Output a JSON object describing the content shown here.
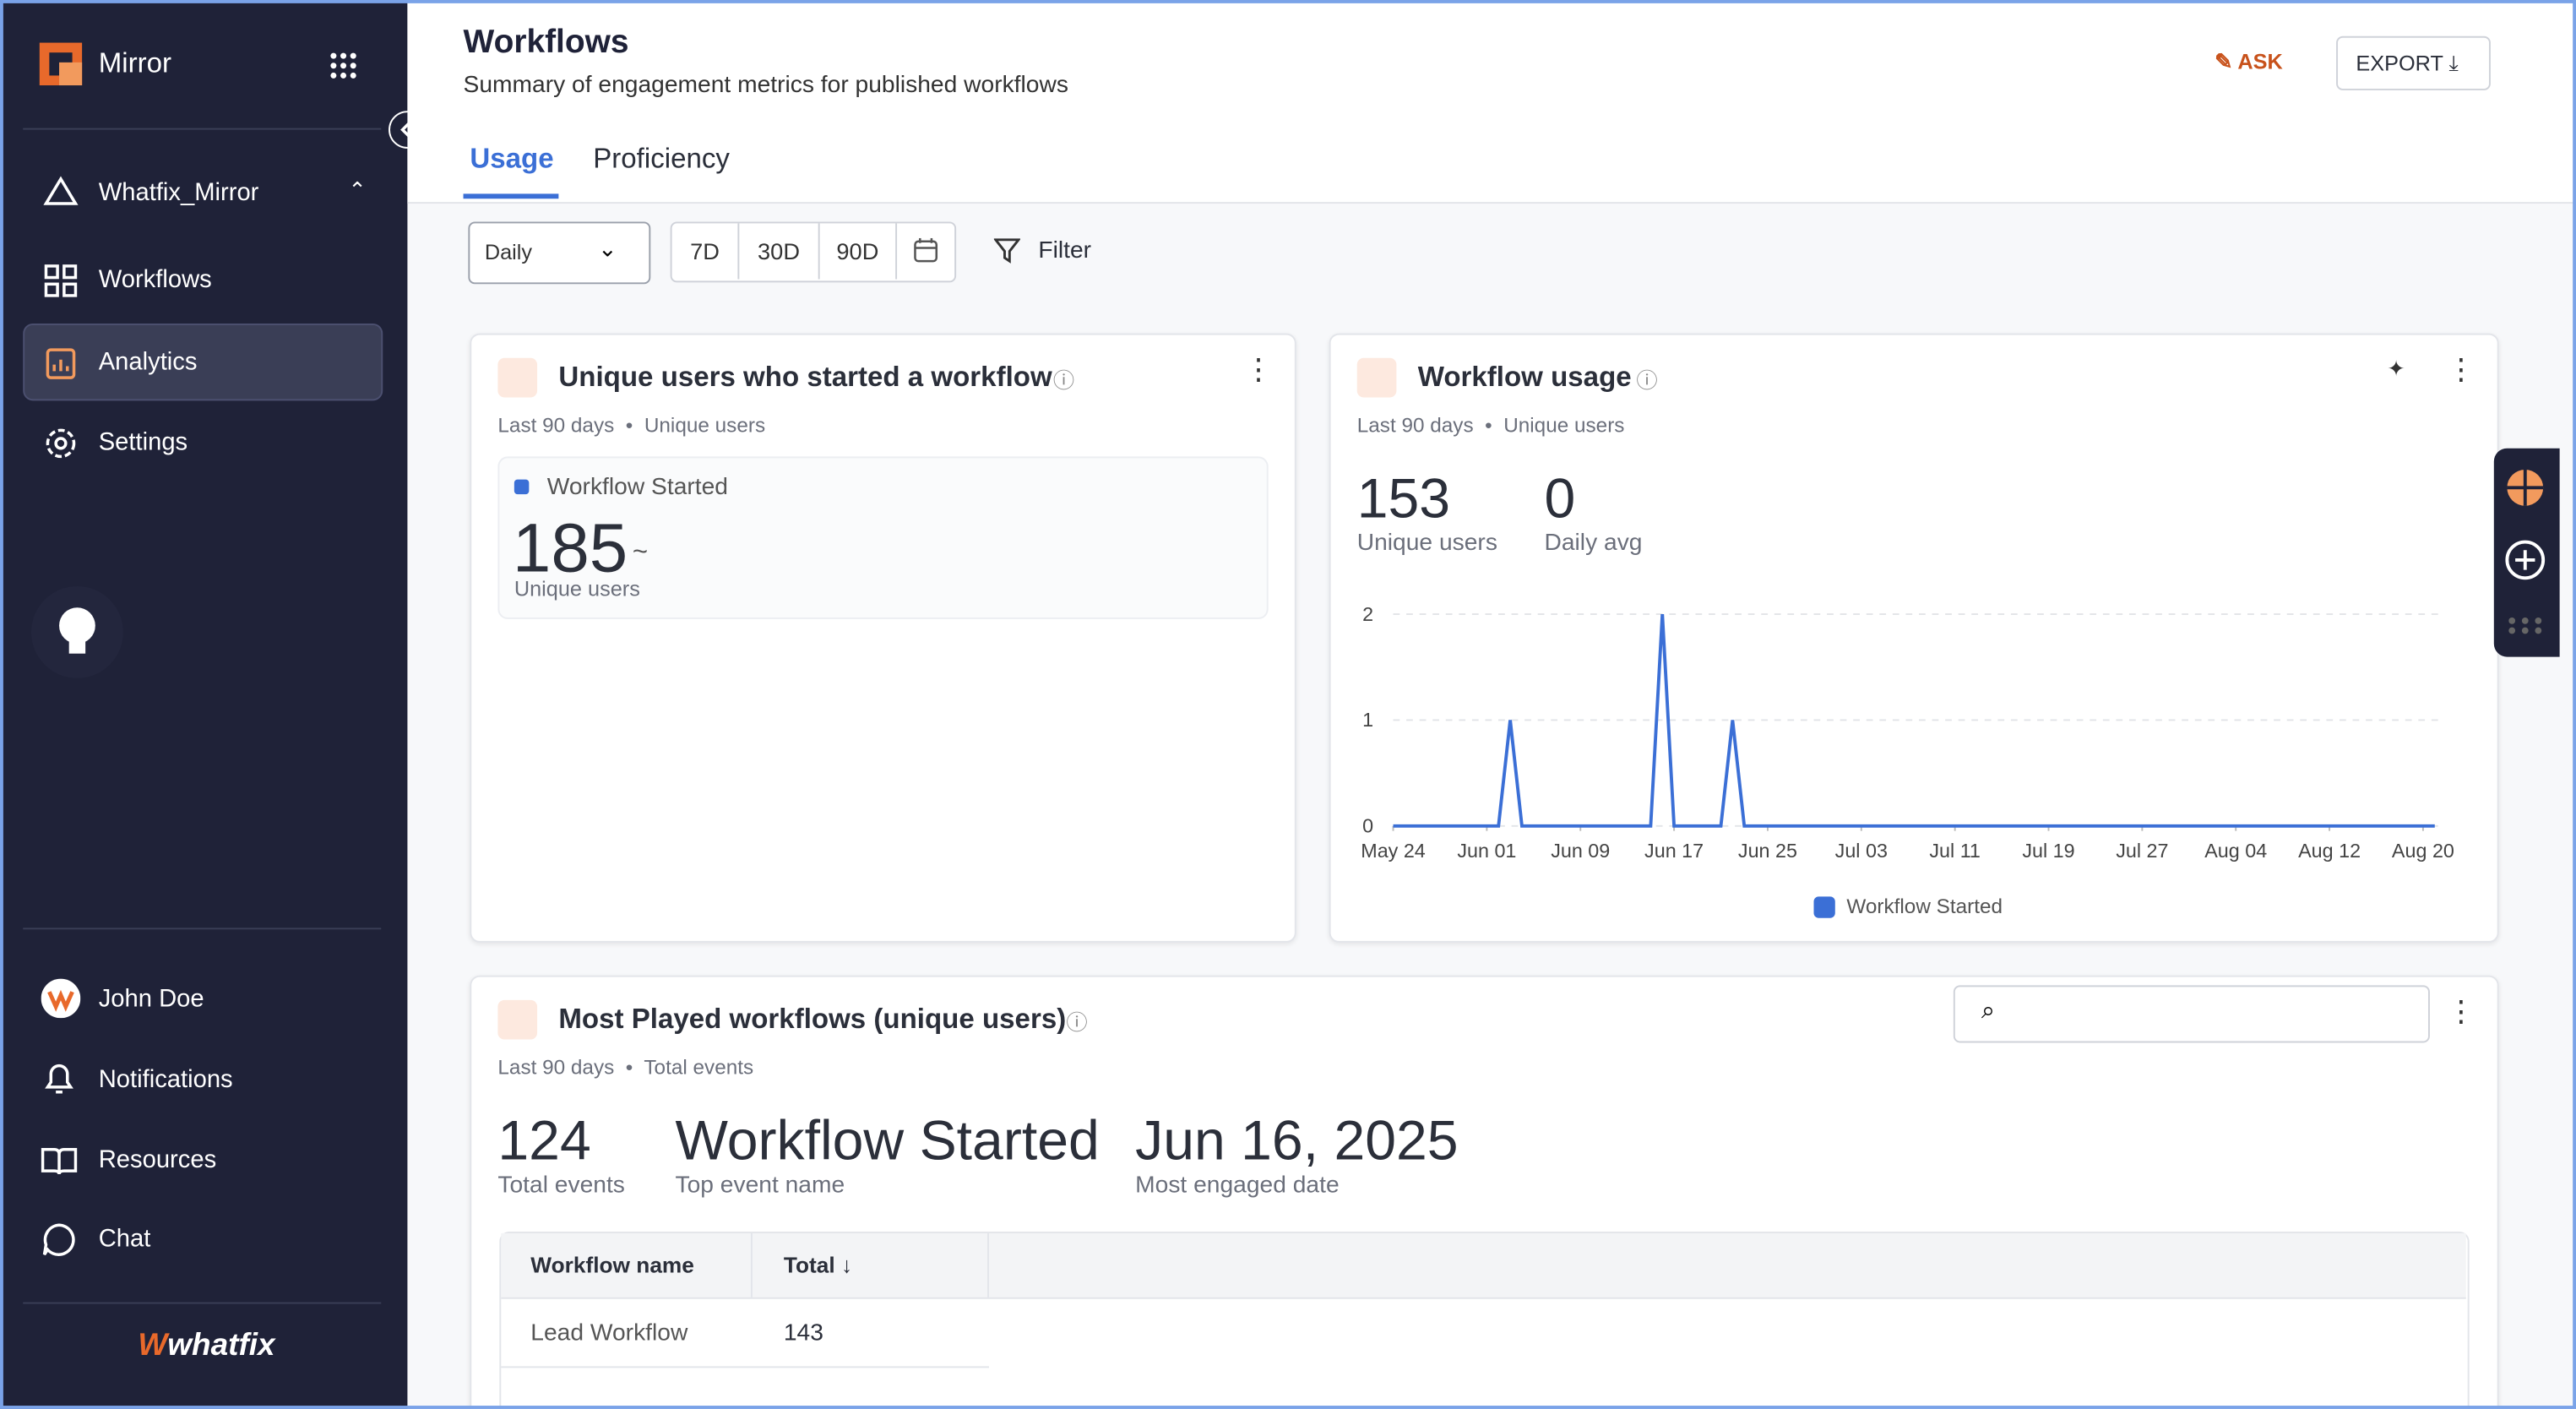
{
  "sidebar": {
    "brand": "Mirror",
    "workspace": "Whatfix_Mirror",
    "nav": [
      "Workflows",
      "Analytics",
      "Settings"
    ],
    "bottom": [
      "John Doe",
      "Notifications",
      "Resources",
      "Chat"
    ],
    "logo": "whatfix"
  },
  "header": {
    "title": "Workflows",
    "subtitle": "Summary of engagement metrics for published workflows",
    "ask": "ASK",
    "export": "EXPORT"
  },
  "tabs": [
    "Usage",
    "Proficiency"
  ],
  "controls": {
    "granularity": "Daily",
    "ranges": [
      "7D",
      "30D",
      "90D"
    ],
    "filter": "Filter"
  },
  "cards": [
    {
      "title": "Unique users who started a workflow",
      "meta": [
        "Last 90 days",
        "Unique users"
      ],
      "legend": "Workflow Started",
      "value": "185",
      "value_label": "Unique users"
    },
    {
      "title": "Workflow usage",
      "meta": [
        "Last 90 days",
        "Unique users"
      ],
      "stats": [
        {
          "value": "153",
          "label": "Unique users"
        },
        {
          "value": "0",
          "label": "Daily avg"
        }
      ],
      "chart_data": {
        "type": "line",
        "series": [
          {
            "name": "Workflow Started",
            "color": "#3b6fd6",
            "values": [
              0,
              0,
              0,
              0,
              0,
              0,
              0,
              0,
              0,
              0,
              1,
              0,
              0,
              0,
              0,
              0,
              0,
              0,
              0,
              0,
              0,
              0,
              0,
              2,
              0,
              0,
              0,
              0,
              0,
              1,
              0,
              0,
              0,
              0,
              0,
              0,
              0,
              0,
              0,
              0,
              0,
              0,
              0,
              0,
              0,
              0,
              0,
              0,
              0,
              0,
              0,
              0,
              0,
              0,
              0,
              0,
              0,
              0,
              0,
              0,
              0,
              0,
              0,
              0,
              0,
              0,
              0,
              0,
              0,
              0,
              0,
              0,
              0,
              0,
              0,
              0,
              0,
              0,
              0,
              0,
              0,
              0,
              0,
              0,
              0,
              0,
              0,
              0,
              0,
              0
            ]
          }
        ],
        "xlim": [
          0,
          89
        ],
        "xticks": [
          {
            "value": 0,
            "label": "May 24"
          },
          {
            "value": 8,
            "label": "Jun 01"
          },
          {
            "value": 16,
            "label": "Jun 09"
          },
          {
            "value": 24,
            "label": "Jun 17"
          },
          {
            "value": 32,
            "label": "Jun 25"
          },
          {
            "value": 40,
            "label": "Jul 03"
          },
          {
            "value": 48,
            "label": "Jul 11"
          },
          {
            "value": 56,
            "label": "Jul 19"
          },
          {
            "value": 64,
            "label": "Jul 27"
          },
          {
            "value": 72,
            "label": "Aug 04"
          },
          {
            "value": 80,
            "label": "Aug 12"
          },
          {
            "value": 88,
            "label": "Aug 20"
          }
        ],
        "ylim": [
          0,
          2
        ],
        "yticks": [
          0,
          1,
          2
        ],
        "grid": true
      }
    },
    {
      "title": "Most Played workflows (unique users)",
      "meta": [
        "Last 90 days",
        "Total events"
      ],
      "stats": [
        {
          "value": "124",
          "label": "Total events"
        },
        {
          "value": "Workflow Started",
          "label": "Top event name"
        },
        {
          "value": "Jun 16, 2025",
          "label": "Most engaged date"
        }
      ],
      "table": {
        "columns": [
          "Workflow name",
          "Total"
        ],
        "rows": [
          [
            "Lead Workflow",
            "143"
          ]
        ]
      }
    }
  ]
}
